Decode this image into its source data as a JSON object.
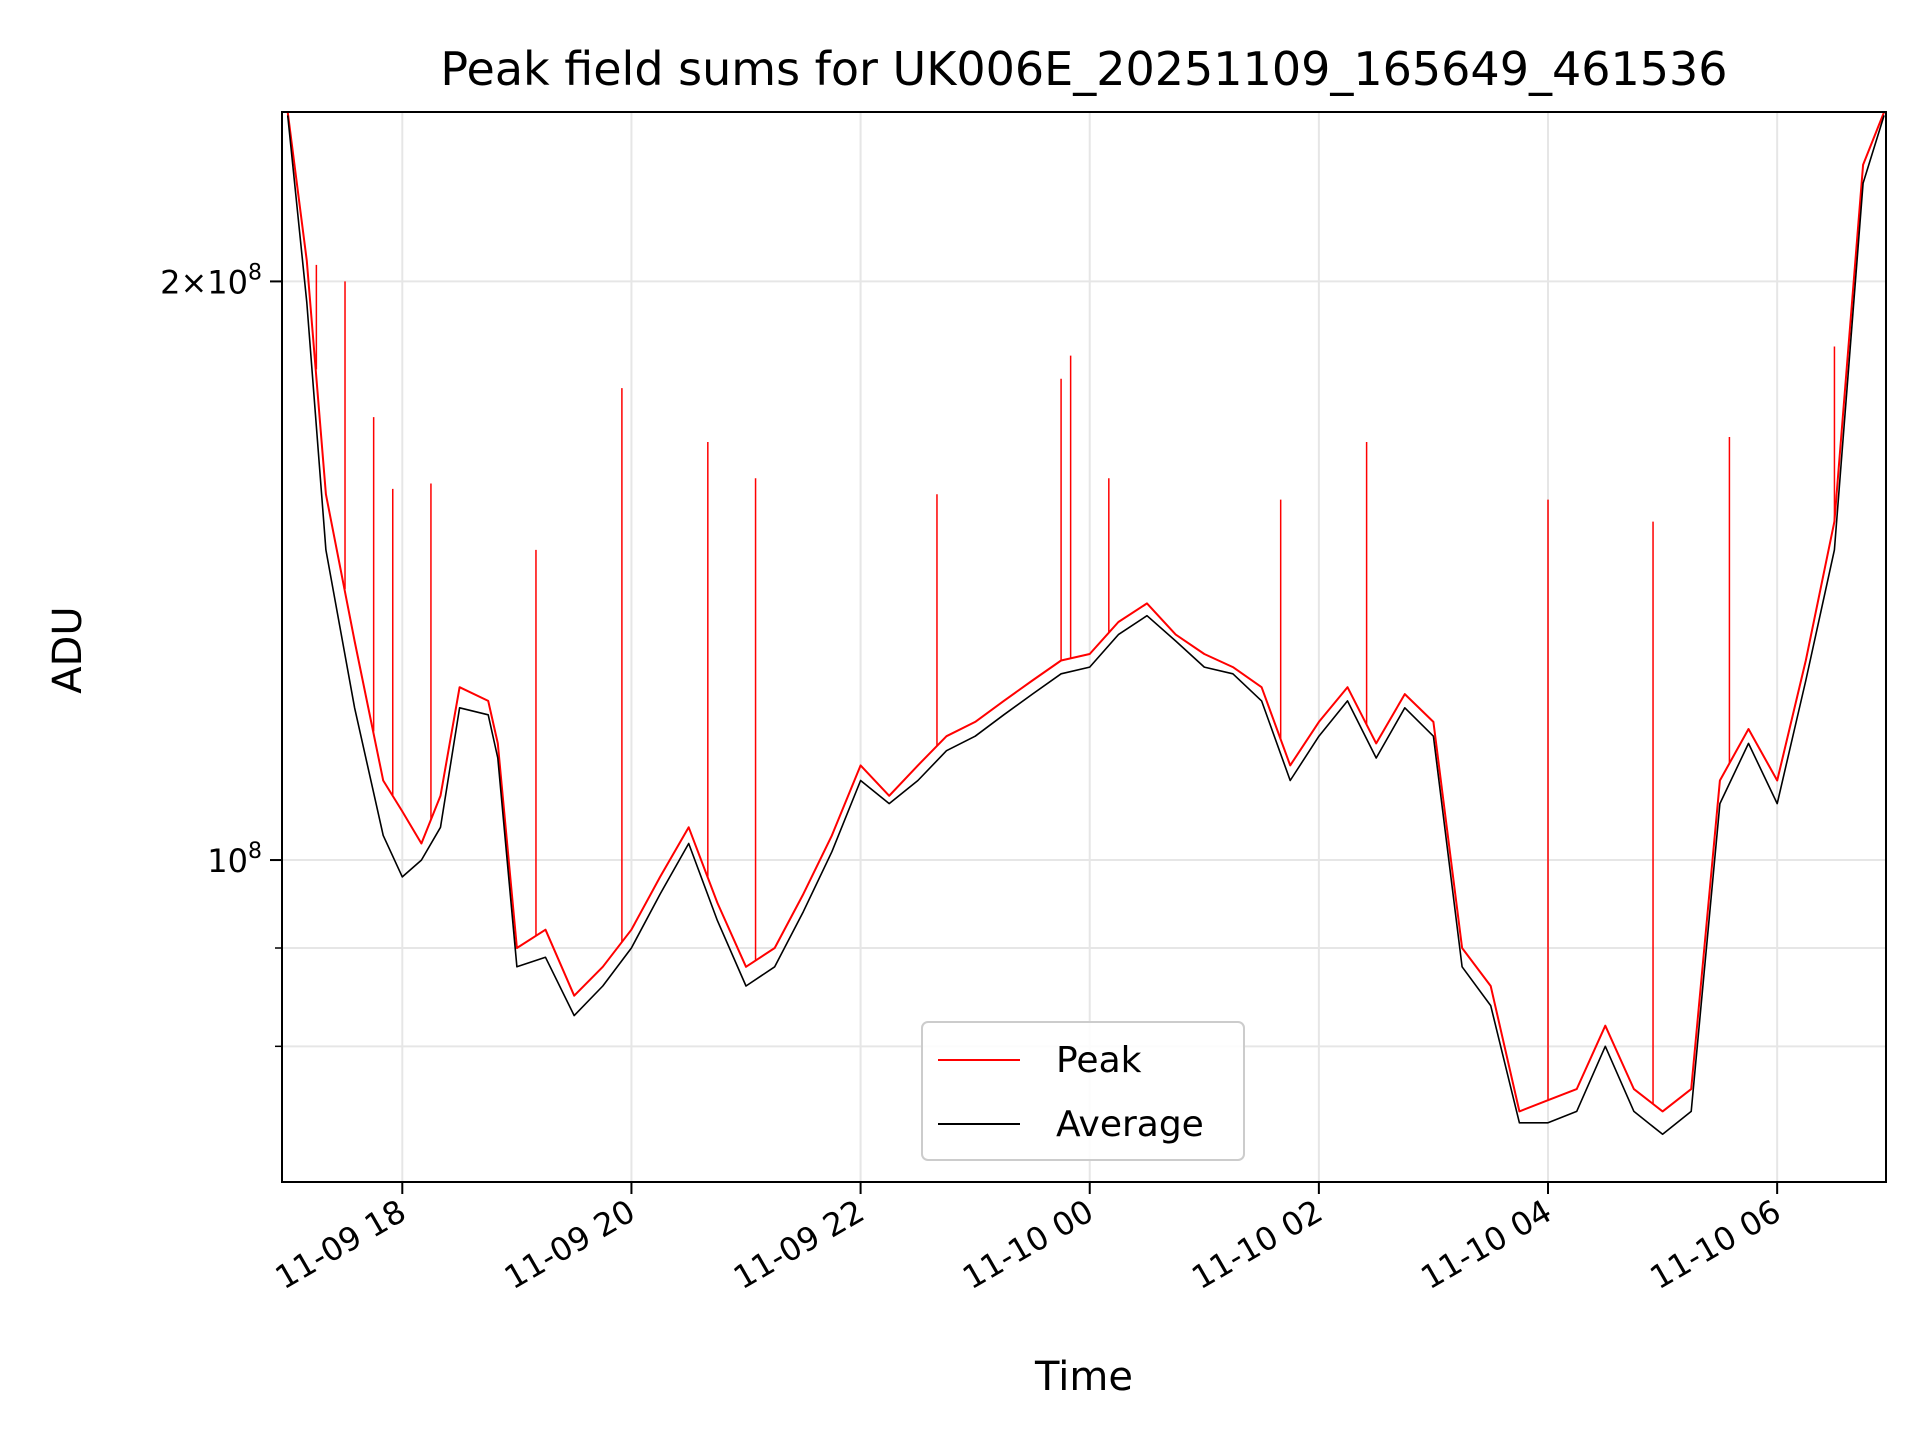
{
  "chart_data": {
    "type": "line",
    "title": "Peak field sums for UK006E_20251109_165649_461536",
    "xlabel": "Time",
    "ylabel": "ADU",
    "yscale": "log",
    "xlim": [
      "2025-11-09 16:57",
      "2025-11-10 06:57"
    ],
    "ylim": [
      68000000,
      245000000
    ],
    "x_ticks": [
      "11-09 18",
      "11-09 20",
      "11-09 22",
      "11-10 00",
      "11-10 02",
      "11-10 04",
      "11-10 06"
    ],
    "y_ticks": [
      "10^8",
      "2×10^8"
    ],
    "grid": true,
    "legend_position": "lower center",
    "series": [
      {
        "name": "Peak",
        "color": "#ff0000",
        "points": [
          [
            "2025-11-09 17:00",
            245000000
          ],
          [
            "2025-11-09 17:10",
            205000000
          ],
          [
            "2025-11-09 17:20",
            155000000
          ],
          [
            "2025-11-09 17:35",
            130000000
          ],
          [
            "2025-11-09 17:50",
            110000000
          ],
          [
            "2025-11-09 18:00",
            106000000
          ],
          [
            "2025-11-09 18:10",
            102000000
          ],
          [
            "2025-11-09 18:20",
            108000000
          ],
          [
            "2025-11-09 18:30",
            123000000
          ],
          [
            "2025-11-09 18:45",
            121000000
          ],
          [
            "2025-11-09 18:50",
            115000000
          ],
          [
            "2025-11-09 19:00",
            90000000
          ],
          [
            "2025-11-09 19:15",
            92000000
          ],
          [
            "2025-11-09 19:30",
            85000000
          ],
          [
            "2025-11-09 19:45",
            88000000
          ],
          [
            "2025-11-09 20:00",
            92000000
          ],
          [
            "2025-11-09 20:15",
            98000000
          ],
          [
            "2025-11-09 20:30",
            104000000
          ],
          [
            "2025-11-09 20:45",
            95000000
          ],
          [
            "2025-11-09 21:00",
            88000000
          ],
          [
            "2025-11-09 21:15",
            90000000
          ],
          [
            "2025-11-09 21:30",
            96000000
          ],
          [
            "2025-11-09 21:45",
            103000000
          ],
          [
            "2025-11-09 22:00",
            112000000
          ],
          [
            "2025-11-09 22:15",
            108000000
          ],
          [
            "2025-11-09 22:30",
            112000000
          ],
          [
            "2025-11-09 22:45",
            116000000
          ],
          [
            "2025-11-09 23:00",
            118000000
          ],
          [
            "2025-11-09 23:15",
            121000000
          ],
          [
            "2025-11-09 23:30",
            124000000
          ],
          [
            "2025-11-09 23:45",
            127000000
          ],
          [
            "2025-11-10 00:00",
            128000000
          ],
          [
            "2025-11-10 00:15",
            133000000
          ],
          [
            "2025-11-10 00:30",
            136000000
          ],
          [
            "2025-11-10 00:45",
            131000000
          ],
          [
            "2025-11-10 01:00",
            128000000
          ],
          [
            "2025-11-10 01:15",
            126000000
          ],
          [
            "2025-11-10 01:30",
            123000000
          ],
          [
            "2025-11-10 01:45",
            112000000
          ],
          [
            "2025-11-10 02:00",
            118000000
          ],
          [
            "2025-11-10 02:15",
            123000000
          ],
          [
            "2025-11-10 02:30",
            115000000
          ],
          [
            "2025-11-10 02:45",
            122000000
          ],
          [
            "2025-11-10 03:00",
            118000000
          ],
          [
            "2025-11-10 03:15",
            90000000
          ],
          [
            "2025-11-10 03:30",
            86000000
          ],
          [
            "2025-11-10 03:45",
            74000000
          ],
          [
            "2025-11-10 04:00",
            75000000
          ],
          [
            "2025-11-10 04:15",
            76000000
          ],
          [
            "2025-11-10 04:30",
            82000000
          ],
          [
            "2025-11-10 04:45",
            76000000
          ],
          [
            "2025-11-10 05:00",
            74000000
          ],
          [
            "2025-11-10 05:15",
            76000000
          ],
          [
            "2025-11-10 05:30",
            110000000
          ],
          [
            "2025-11-10 05:45",
            117000000
          ],
          [
            "2025-11-10 06:00",
            110000000
          ],
          [
            "2025-11-10 06:15",
            127000000
          ],
          [
            "2025-11-10 06:30",
            150000000
          ],
          [
            "2025-11-10 06:45",
            230000000
          ],
          [
            "2025-11-10 06:56",
            245000000
          ]
        ],
        "spikes": [
          [
            "2025-11-09 17:15",
            204000000
          ],
          [
            "2025-11-09 17:30",
            200000000
          ],
          [
            "2025-11-09 17:45",
            170000000
          ],
          [
            "2025-11-09 17:55",
            156000000
          ],
          [
            "2025-11-09 18:15",
            157000000
          ],
          [
            "2025-11-09 19:10",
            145000000
          ],
          [
            "2025-11-09 19:55",
            176000000
          ],
          [
            "2025-11-09 20:40",
            165000000
          ],
          [
            "2025-11-09 21:05",
            158000000
          ],
          [
            "2025-11-09 22:40",
            155000000
          ],
          [
            "2025-11-09 23:45",
            178000000
          ],
          [
            "2025-11-09 23:50",
            183000000
          ],
          [
            "2025-11-10 00:10",
            158000000
          ],
          [
            "2025-11-10 01:40",
            154000000
          ],
          [
            "2025-11-10 02:25",
            165000000
          ],
          [
            "2025-11-10 04:00",
            154000000
          ],
          [
            "2025-11-10 04:55",
            150000000
          ],
          [
            "2025-11-10 05:35",
            166000000
          ],
          [
            "2025-11-10 06:30",
            185000000
          ]
        ]
      },
      {
        "name": "Average",
        "color": "#000000",
        "points": [
          [
            "2025-11-09 17:00",
            244000000
          ],
          [
            "2025-11-09 17:10",
            195000000
          ],
          [
            "2025-11-09 17:20",
            145000000
          ],
          [
            "2025-11-09 17:35",
            120000000
          ],
          [
            "2025-11-09 17:50",
            103000000
          ],
          [
            "2025-11-09 18:00",
            98000000
          ],
          [
            "2025-11-09 18:10",
            100000000
          ],
          [
            "2025-11-09 18:20",
            104000000
          ],
          [
            "2025-11-09 18:30",
            120000000
          ],
          [
            "2025-11-09 18:45",
            119000000
          ],
          [
            "2025-11-09 18:50",
            113000000
          ],
          [
            "2025-11-09 19:00",
            88000000
          ],
          [
            "2025-11-09 19:15",
            89000000
          ],
          [
            "2025-11-09 19:30",
            83000000
          ],
          [
            "2025-11-09 19:45",
            86000000
          ],
          [
            "2025-11-09 20:00",
            90000000
          ],
          [
            "2025-11-09 20:15",
            96000000
          ],
          [
            "2025-11-09 20:30",
            102000000
          ],
          [
            "2025-11-09 20:45",
            93000000
          ],
          [
            "2025-11-09 21:00",
            86000000
          ],
          [
            "2025-11-09 21:15",
            88000000
          ],
          [
            "2025-11-09 21:30",
            94000000
          ],
          [
            "2025-11-09 21:45",
            101000000
          ],
          [
            "2025-11-09 22:00",
            110000000
          ],
          [
            "2025-11-09 22:15",
            107000000
          ],
          [
            "2025-11-09 22:30",
            110000000
          ],
          [
            "2025-11-09 22:45",
            114000000
          ],
          [
            "2025-11-09 23:00",
            116000000
          ],
          [
            "2025-11-09 23:15",
            119000000
          ],
          [
            "2025-11-09 23:30",
            122000000
          ],
          [
            "2025-11-09 23:45",
            125000000
          ],
          [
            "2025-11-10 00:00",
            126000000
          ],
          [
            "2025-11-10 00:15",
            131000000
          ],
          [
            "2025-11-10 00:30",
            134000000
          ],
          [
            "2025-11-10 00:45",
            130000000
          ],
          [
            "2025-11-10 01:00",
            126000000
          ],
          [
            "2025-11-10 01:15",
            125000000
          ],
          [
            "2025-11-10 01:30",
            121000000
          ],
          [
            "2025-11-10 01:45",
            110000000
          ],
          [
            "2025-11-10 02:00",
            116000000
          ],
          [
            "2025-11-10 02:15",
            121000000
          ],
          [
            "2025-11-10 02:30",
            113000000
          ],
          [
            "2025-11-10 02:45",
            120000000
          ],
          [
            "2025-11-10 03:00",
            116000000
          ],
          [
            "2025-11-10 03:15",
            88000000
          ],
          [
            "2025-11-10 03:30",
            84000000
          ],
          [
            "2025-11-10 03:45",
            73000000
          ],
          [
            "2025-11-10 04:00",
            73000000
          ],
          [
            "2025-11-10 04:15",
            74000000
          ],
          [
            "2025-11-10 04:30",
            80000000
          ],
          [
            "2025-11-10 04:45",
            74000000
          ],
          [
            "2025-11-10 05:00",
            72000000
          ],
          [
            "2025-11-10 05:15",
            74000000
          ],
          [
            "2025-11-10 05:30",
            107000000
          ],
          [
            "2025-11-10 05:45",
            115000000
          ],
          [
            "2025-11-10 06:00",
            107000000
          ],
          [
            "2025-11-10 06:15",
            124000000
          ],
          [
            "2025-11-10 06:30",
            145000000
          ],
          [
            "2025-11-10 06:45",
            225000000
          ],
          [
            "2025-11-10 06:56",
            244000000
          ]
        ]
      }
    ]
  }
}
